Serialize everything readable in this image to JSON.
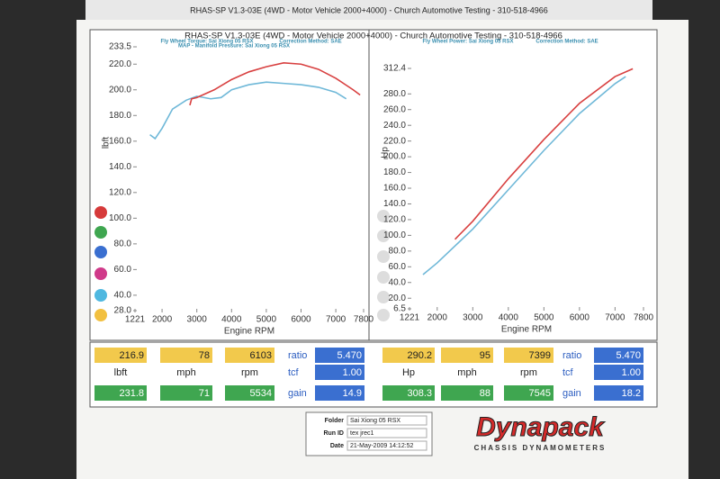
{
  "header": {
    "background_title": "RHAS-SP V1.3-03E  (4WD - Motor Vehicle 2000+4000) - Church Automotive Testing - 310-518-4966",
    "title": "RHAS-SP V1.3-03E  (4WD - Motor Vehicle 2000+4000) - Church Automotive Testing - 310-518-4966"
  },
  "chart_data": [
    {
      "type": "line",
      "annotations": [
        "Fly Wheel Torque: Sai Xiong 05 RSX",
        "Correction Method: SAE",
        "MAP - Manifold Pressure: Sai Xiong 05 RSX"
      ],
      "xlabel": "Engine RPM",
      "ylabel": "lbft",
      "xlim": [
        1221,
        7800
      ],
      "xticks": [
        1221,
        2000,
        3000,
        4000,
        5000,
        6000,
        7000,
        7800
      ],
      "ylim": [
        28,
        233.5
      ],
      "yticks": [
        {
          "value": 28,
          "label": "28.0"
        },
        {
          "value": 40,
          "label": "40.0"
        },
        {
          "value": 60,
          "label": "60.0"
        },
        {
          "value": 80,
          "label": "80.0"
        },
        {
          "value": 100,
          "label": "100.0"
        },
        {
          "value": 120,
          "label": "120.0"
        },
        {
          "value": 140,
          "label": "140.0"
        },
        {
          "value": 160,
          "label": "160.0"
        },
        {
          "value": 180,
          "label": "180.0"
        },
        {
          "value": 200,
          "label": "200.0"
        },
        {
          "value": 220,
          "label": "220.0"
        },
        233.5
      ],
      "series": [
        {
          "color": "#6fb8d8",
          "x": [
            1650,
            1800,
            2000,
            2300,
            2700,
            3000,
            3400,
            3700,
            4000,
            4500,
            5000,
            5500,
            6000,
            6500,
            7000,
            7300
          ],
          "values": [
            165,
            162,
            170,
            185,
            192,
            195,
            193,
            194,
            200,
            204,
            206,
            205,
            204,
            202,
            198,
            193
          ]
        },
        {
          "color": "#d84040",
          "x": [
            2800,
            2850,
            3000,
            3500,
            4000,
            4500,
            5000,
            5500,
            6000,
            6500,
            7000,
            7500,
            7700
          ],
          "values": [
            188,
            193,
            194,
            200,
            208,
            214,
            218,
            221,
            220,
            216,
            209,
            200,
            196
          ]
        }
      ]
    },
    {
      "type": "line",
      "annotations": [
        "Fly Wheel Power: Sai Xiong 05 RSX",
        "Correction Method: SAE"
      ],
      "xlabel": "Engine RPM",
      "ylabel": "Hp",
      "xlim": [
        1221,
        7800
      ],
      "xticks": [
        1221,
        2000,
        3000,
        4000,
        5000,
        6000,
        7000,
        7800
      ],
      "ylim": [
        6.5,
        312.4
      ],
      "yticks": [
        6.5,
        {
          "value": 20,
          "label": "20.0"
        },
        {
          "value": 40,
          "label": "40.0"
        },
        {
          "value": 60,
          "label": "60.0"
        },
        {
          "value": 80,
          "label": "80.0"
        },
        {
          "value": 100,
          "label": "100.0"
        },
        {
          "value": 120,
          "label": "120.0"
        },
        {
          "value": 140,
          "label": "140.0"
        },
        {
          "value": 160,
          "label": "160.0"
        },
        {
          "value": 180,
          "label": "180.0"
        },
        {
          "value": 200,
          "label": "200.0"
        },
        {
          "value": 220,
          "label": "220.0"
        },
        {
          "value": 240,
          "label": "240.0"
        },
        {
          "value": 260,
          "label": "260.0"
        },
        {
          "value": 280,
          "label": "280.0"
        },
        312.4
      ],
      "series": [
        {
          "color": "#6fb8d8",
          "x": [
            1600,
            2000,
            3000,
            4000,
            5000,
            6000,
            7000,
            7300
          ],
          "values": [
            50,
            65,
            108,
            158,
            208,
            255,
            293,
            302
          ]
        },
        {
          "color": "#d84040",
          "x": [
            2500,
            3000,
            4000,
            5000,
            6000,
            7000,
            7500
          ],
          "values": [
            95,
            118,
            172,
            222,
            268,
            302,
            312
          ]
        }
      ]
    }
  ],
  "readouts": [
    [
      [
        "216.9",
        "78",
        "6103",
        "ratio",
        "5.470"
      ],
      [
        "lbft",
        "mph",
        "rpm",
        "tcf",
        "1.00"
      ],
      [
        "231.8",
        "71",
        "5534",
        "gain",
        "14.9"
      ]
    ],
    [
      [
        "290.2",
        "95",
        "7399",
        "ratio",
        "5.470"
      ],
      [
        "Hp",
        "mph",
        "rpm",
        "tcf",
        "1.00"
      ],
      [
        "308.3",
        "88",
        "7545",
        "gain",
        "18.2"
      ]
    ]
  ],
  "run_info": [
    [
      "Folder",
      "Sai Xiong 05 RSX"
    ],
    [
      "Run ID",
      "tex jrec1"
    ],
    [
      "Date",
      "21-May-2009  14:12:52"
    ]
  ],
  "logo": {
    "name": "Dynapack",
    "tagline": "CHASSIS  DYNAMOMETERS"
  }
}
